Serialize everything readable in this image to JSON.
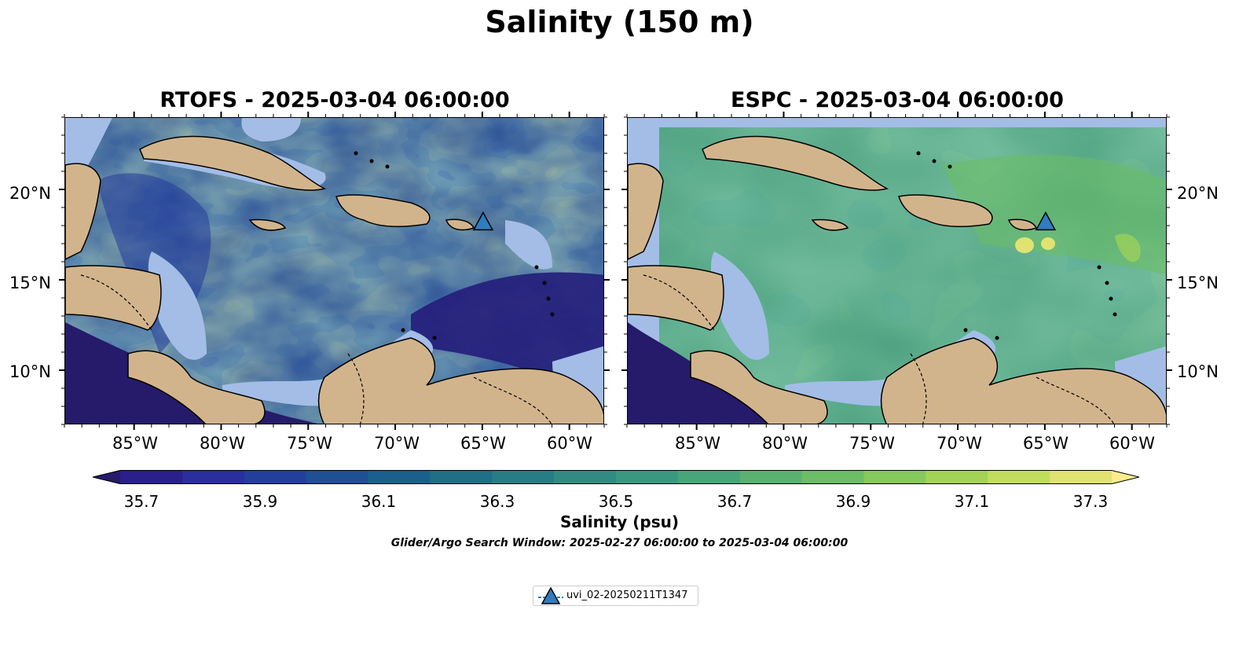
{
  "figure": {
    "title": "Salinity (150 m)",
    "panels": [
      {
        "title": "RTOFS - 2025-03-04 06:00:00",
        "model": "RTOFS"
      },
      {
        "title": "ESPC - 2025-03-04 06:00:00",
        "model": "ESPC"
      }
    ],
    "lon_ticks": [
      "85°W",
      "80°W",
      "75°W",
      "70°W",
      "65°W",
      "60°W"
    ],
    "lat_ticks": [
      "20°N",
      "15°N",
      "10°N"
    ],
    "colorbar": {
      "label": "Salinity (psu)",
      "ticks": [
        "35.7",
        "35.9",
        "36.1",
        "36.3",
        "36.5",
        "36.7",
        "36.9",
        "37.1",
        "37.3"
      ],
      "colors": [
        "#261a6b",
        "#2b1f8c",
        "#2a2f9d",
        "#243f9b",
        "#1f4f94",
        "#1a608c",
        "#1f6f87",
        "#287d85",
        "#318b83",
        "#3b9880",
        "#49a57a",
        "#5ab171",
        "#6bbd66",
        "#86c95c",
        "#a3d357",
        "#c2dd5c",
        "#e0e371",
        "#fbec8c"
      ]
    },
    "search_window": "Glider/Argo Search Window: 2025-02-27 06:00:00 to 2025-03-04 06:00:00",
    "legend": {
      "label": "uvi_02-20250211T1347",
      "color": "#2f7dbf",
      "marker": "triangle"
    },
    "map_extent": {
      "lon_min": -89,
      "lon_max": -58,
      "lat_min": 7,
      "lat_max": 24
    },
    "glider_position": {
      "lon": -65.0,
      "lat": 18.2
    },
    "colors": {
      "land": "#d2b48c",
      "shallow": "#a3bde6",
      "pacific": "#261a6b"
    }
  },
  "chart_data": {
    "type": "heatmap",
    "title": "Salinity (150 m)",
    "xlabel": "",
    "ylabel": "",
    "xlim": [
      -89,
      -58
    ],
    "ylim": [
      7,
      24
    ],
    "colorbar_range": [
      35.6,
      37.4
    ],
    "series": [
      {
        "name": "uvi_02-20250211T1347",
        "lon": -65.0,
        "lat": 18.2
      }
    ]
  }
}
